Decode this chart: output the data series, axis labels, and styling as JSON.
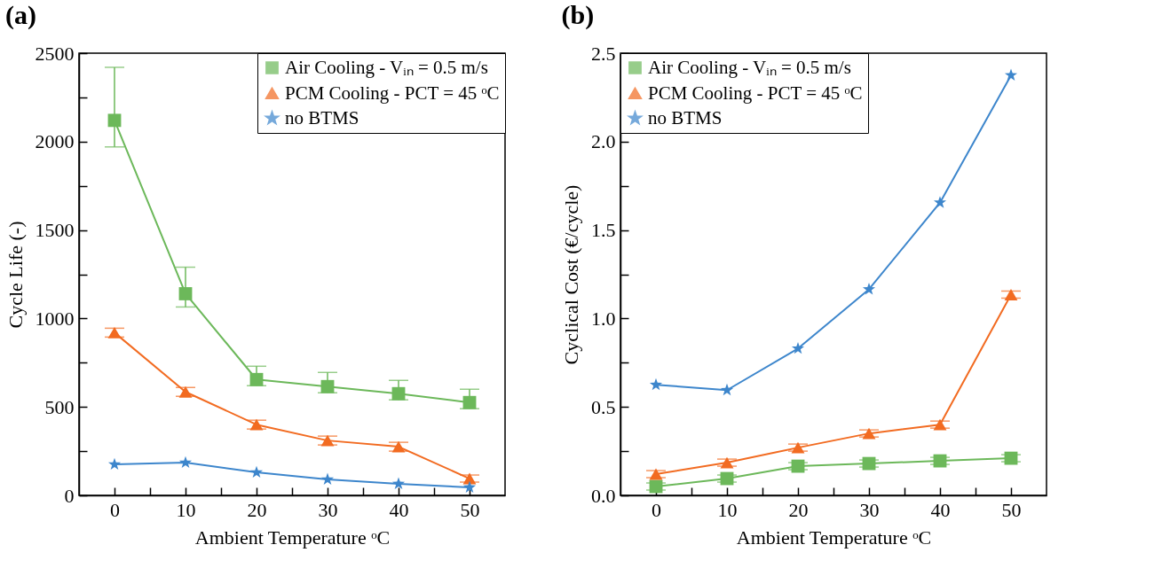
{
  "chart_data": [
    {
      "type": "line",
      "title": "(a)",
      "xlabel": "Ambient Temperature ᵒC",
      "ylabel": "Cycle Life (-)",
      "x": [
        0,
        10,
        20,
        30,
        40,
        50
      ],
      "xlim": [
        -5,
        55
      ],
      "xticks": [
        0,
        {
          "value": 5,
          "label": null
        },
        10,
        {
          "value": 15,
          "label": null
        },
        20,
        {
          "value": 25,
          "label": null
        },
        30,
        {
          "value": 35,
          "label": null
        },
        40,
        {
          "value": 45,
          "label": null
        },
        50
      ],
      "ylim": [
        0,
        2500
      ],
      "yticks": [
        0,
        {
          "value": 250,
          "label": null
        },
        500,
        {
          "value": 750,
          "label": null
        },
        1000,
        {
          "value": 1250,
          "label": null
        },
        1500,
        {
          "value": 1750,
          "label": null
        },
        2000,
        {
          "value": 2250,
          "label": null
        },
        2500
      ],
      "legend": "top right",
      "series": [
        {
          "name": "Air Cooling - Vᵢₙ = 0.5 m/s",
          "color": "#6cb85a",
          "marker": "square",
          "values": [
            2120,
            1140,
            655,
            615,
            575,
            525
          ],
          "errors": [
            [
              1970,
              2420
            ],
            [
              1065,
              1290
            ],
            [
              620,
              730
            ],
            [
              580,
              695
            ],
            [
              540,
              650
            ],
            [
              490,
              600
            ]
          ]
        },
        {
          "name": "PCM Cooling - PCT = 45 ᵒC",
          "color": "#f26b21",
          "marker": "triangle",
          "values": [
            920,
            585,
            400,
            310,
            275,
            95
          ],
          "errors": [
            25,
            25,
            25,
            25,
            25,
            20
          ]
        },
        {
          "name": "no BTMS",
          "color": "#3d86cc",
          "marker": "star",
          "values": [
            175,
            185,
            130,
            90,
            65,
            45
          ]
        }
      ]
    },
    {
      "type": "line",
      "title": "(b)",
      "xlabel": "Ambient Temperature ᵒC",
      "ylabel": "Cyclical Cost (€/cycle)",
      "x": [
        0,
        10,
        20,
        30,
        40,
        50
      ],
      "xlim": [
        -5,
        55
      ],
      "xticks": [
        0,
        {
          "value": 5,
          "label": null
        },
        10,
        {
          "value": 15,
          "label": null
        },
        20,
        {
          "value": 25,
          "label": null
        },
        30,
        {
          "value": 35,
          "label": null
        },
        40,
        {
          "value": 45,
          "label": null
        },
        50
      ],
      "ylim": [
        0,
        2.5
      ],
      "yticks": [
        {
          "value": 0,
          "label": "0.0"
        },
        {
          "value": 0.25,
          "label": null
        },
        {
          "value": 0.5,
          "label": "0.5"
        },
        {
          "value": 0.75,
          "label": null
        },
        {
          "value": 1,
          "label": "1.0"
        },
        {
          "value": 1.25,
          "label": null
        },
        {
          "value": 1.5,
          "label": "1.5"
        },
        {
          "value": 1.75,
          "label": null
        },
        {
          "value": 2,
          "label": "2.0"
        },
        {
          "value": 2.25,
          "label": null
        },
        {
          "value": 2.5,
          "label": "2.5"
        }
      ],
      "legend": "top left",
      "series": [
        {
          "name": "Air Cooling - Vᵢₙ = 0.5 m/s",
          "color": "#6cb85a",
          "marker": "square",
          "values": [
            0.05,
            0.095,
            0.165,
            0.18,
            0.195,
            0.21
          ],
          "errors": [
            0.02,
            0.02,
            0.02,
            0.02,
            0.02,
            0.02
          ]
        },
        {
          "name": "PCM Cooling - PCT = 45 ᵒC",
          "color": "#f26b21",
          "marker": "triangle",
          "values": [
            0.12,
            0.185,
            0.27,
            0.35,
            0.4,
            1.135
          ],
          "errors": [
            0.02,
            0.02,
            0.02,
            0.02,
            0.02,
            0.02
          ]
        },
        {
          "name": "no BTMS",
          "color": "#3d86cc",
          "marker": "star",
          "values": [
            0.625,
            0.595,
            0.83,
            1.165,
            1.655,
            2.375
          ]
        }
      ]
    }
  ]
}
